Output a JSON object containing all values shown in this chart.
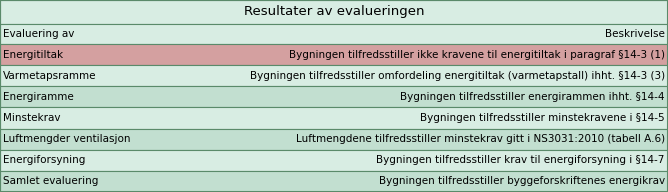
{
  "title": "Resultater av evalueringen",
  "header_left": "Evaluering av",
  "header_right": "Beskrivelse",
  "rows": [
    {
      "left": "Energitiltak",
      "right": "Bygningen tilfredsstiller ikke kravene til energitiltak i paragraf §14-3 (1)",
      "bg": "#d4a0a0"
    },
    {
      "left": "Varmetapsramme",
      "right": "Bygningen tilfredsstiller omfordeling energitiltak (varmetapstall) ihht. §14-3 (3)",
      "bg": "#d8ede3"
    },
    {
      "left": "Energiramme",
      "right": "Bygningen tilfredsstiller energirammen ihht. §14-4",
      "bg": "#c2dfd0"
    },
    {
      "left": "Minstekrav",
      "right": "Bygningen tilfredsstiller minstekravene i §14-5",
      "bg": "#d8ede3"
    },
    {
      "left": "Luftmengder ventilasjon",
      "right": "Luftmengdene tilfredsstiller minstekrav gitt i NS3031:2010 (tabell A.6)",
      "bg": "#c2dfd0"
    },
    {
      "left": "Energiforsyning",
      "right": "Bygningen tilfredsstiller krav til energiforsyning i §14-7",
      "bg": "#d8ede3"
    },
    {
      "left": "Samlet evaluering",
      "right": "Bygningen tilfredsstiller byggeforskriftenes energikrav",
      "bg": "#c2dfd0"
    }
  ],
  "title_bg": "#d8ede3",
  "header_bg": "#d8ede3",
  "border_color": "#5a8a6a",
  "text_color": "#000000",
  "font_size": 7.5,
  "title_font_size": 9.5,
  "fig_width": 6.68,
  "fig_height": 1.92,
  "dpi": 100
}
